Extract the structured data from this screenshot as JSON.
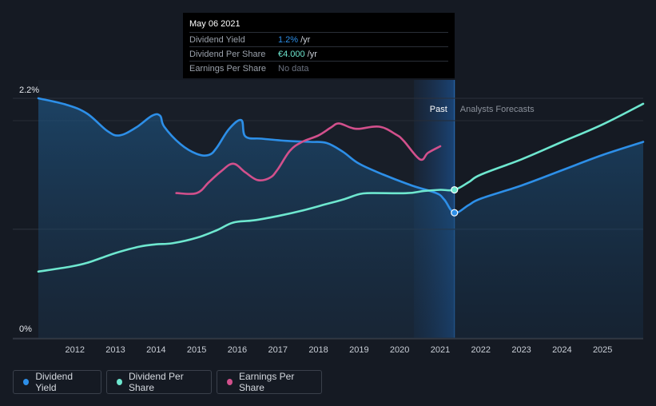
{
  "tooltip": {
    "date": "May 06 2021",
    "rows": [
      {
        "label": "Dividend Yield",
        "value": "1.2%",
        "unit": "/yr",
        "color": "#2d8fe8"
      },
      {
        "label": "Dividend Per Share",
        "value": "€4.000",
        "unit": "/yr",
        "color": "#6ee7cf"
      },
      {
        "label": "Earnings Per Share",
        "value": "No data",
        "unit": "",
        "color": "#6b7280"
      }
    ]
  },
  "regions": {
    "past": "Past",
    "forecast": "Analysts Forecasts"
  },
  "legend": [
    {
      "label": "Dividend Yield",
      "color": "#2d8fe8"
    },
    {
      "label": "Dividend Per Share",
      "color": "#6ee7cf"
    },
    {
      "label": "Earnings Per Share",
      "color": "#d2508c"
    }
  ],
  "chart_data": {
    "type": "line",
    "title": "",
    "xlabel": "",
    "ylabel": "",
    "y_tick_labels": [
      "2.2%",
      "0%"
    ],
    "x_tick_labels": [
      "2012",
      "2013",
      "2014",
      "2015",
      "2016",
      "2017",
      "2018",
      "2019",
      "2020",
      "2021",
      "2022",
      "2023",
      "2024",
      "2025"
    ],
    "xlim": [
      2011.1,
      2026.0
    ],
    "ylim": [
      0,
      2.2
    ],
    "past_end": 2021.35,
    "shaded_past_start": 2020.35,
    "series": [
      {
        "name": "Dividend Yield",
        "color": "#2d8fe8",
        "unit": "%",
        "points": [
          [
            2011.1,
            2.2
          ],
          [
            2011.8,
            2.14
          ],
          [
            2012.3,
            2.06
          ],
          [
            2012.8,
            1.9
          ],
          [
            2013.1,
            1.86
          ],
          [
            2013.5,
            1.93
          ],
          [
            2013.9,
            2.04
          ],
          [
            2014.1,
            2.04
          ],
          [
            2014.2,
            1.94
          ],
          [
            2014.6,
            1.78
          ],
          [
            2015.0,
            1.69
          ],
          [
            2015.3,
            1.68
          ],
          [
            2015.5,
            1.75
          ],
          [
            2015.8,
            1.92
          ],
          [
            2016.1,
            2.0
          ],
          [
            2016.2,
            1.85
          ],
          [
            2016.6,
            1.83
          ],
          [
            2017.2,
            1.81
          ],
          [
            2017.8,
            1.8
          ],
          [
            2018.2,
            1.79
          ],
          [
            2018.6,
            1.71
          ],
          [
            2019.0,
            1.6
          ],
          [
            2019.6,
            1.5
          ],
          [
            2020.3,
            1.4
          ],
          [
            2020.9,
            1.33
          ],
          [
            2021.1,
            1.27
          ],
          [
            2021.35,
            1.15
          ],
          [
            2021.7,
            1.22
          ],
          [
            2022.0,
            1.28
          ],
          [
            2023.0,
            1.4
          ],
          [
            2024.0,
            1.54
          ],
          [
            2025.0,
            1.68
          ],
          [
            2026.0,
            1.8
          ]
        ]
      },
      {
        "name": "Dividend Per Share",
        "color": "#6ee7cf",
        "unit": "EUR",
        "points": [
          [
            2011.1,
            0.61
          ],
          [
            2011.8,
            0.65
          ],
          [
            2012.3,
            0.69
          ],
          [
            2013.0,
            0.78
          ],
          [
            2013.6,
            0.84
          ],
          [
            2014.0,
            0.86
          ],
          [
            2014.4,
            0.87
          ],
          [
            2015.0,
            0.92
          ],
          [
            2015.5,
            0.99
          ],
          [
            2015.9,
            1.06
          ],
          [
            2016.4,
            1.08
          ],
          [
            2017.0,
            1.12
          ],
          [
            2017.6,
            1.17
          ],
          [
            2018.2,
            1.23
          ],
          [
            2018.6,
            1.27
          ],
          [
            2019.0,
            1.32
          ],
          [
            2019.3,
            1.33
          ],
          [
            2020.2,
            1.33
          ],
          [
            2020.6,
            1.35
          ],
          [
            2021.0,
            1.36
          ],
          [
            2021.35,
            1.36
          ],
          [
            2021.7,
            1.43
          ],
          [
            2022.0,
            1.5
          ],
          [
            2023.0,
            1.64
          ],
          [
            2024.0,
            1.8
          ],
          [
            2025.0,
            1.96
          ],
          [
            2026.0,
            2.15
          ]
        ]
      },
      {
        "name": "Earnings Per Share",
        "color": "#d2508c",
        "unit": "EUR",
        "points": [
          [
            2014.5,
            1.33
          ],
          [
            2015.0,
            1.33
          ],
          [
            2015.3,
            1.43
          ],
          [
            2015.6,
            1.53
          ],
          [
            2015.9,
            1.6
          ],
          [
            2016.2,
            1.52
          ],
          [
            2016.5,
            1.45
          ],
          [
            2016.8,
            1.47
          ],
          [
            2017.0,
            1.55
          ],
          [
            2017.3,
            1.72
          ],
          [
            2017.6,
            1.8
          ],
          [
            2018.0,
            1.86
          ],
          [
            2018.3,
            1.93
          ],
          [
            2018.5,
            1.97
          ],
          [
            2018.8,
            1.93
          ],
          [
            2019.0,
            1.92
          ],
          [
            2019.5,
            1.94
          ],
          [
            2019.9,
            1.87
          ],
          [
            2020.1,
            1.81
          ],
          [
            2020.5,
            1.64
          ],
          [
            2020.7,
            1.7
          ],
          [
            2021.0,
            1.76
          ]
        ]
      }
    ]
  }
}
